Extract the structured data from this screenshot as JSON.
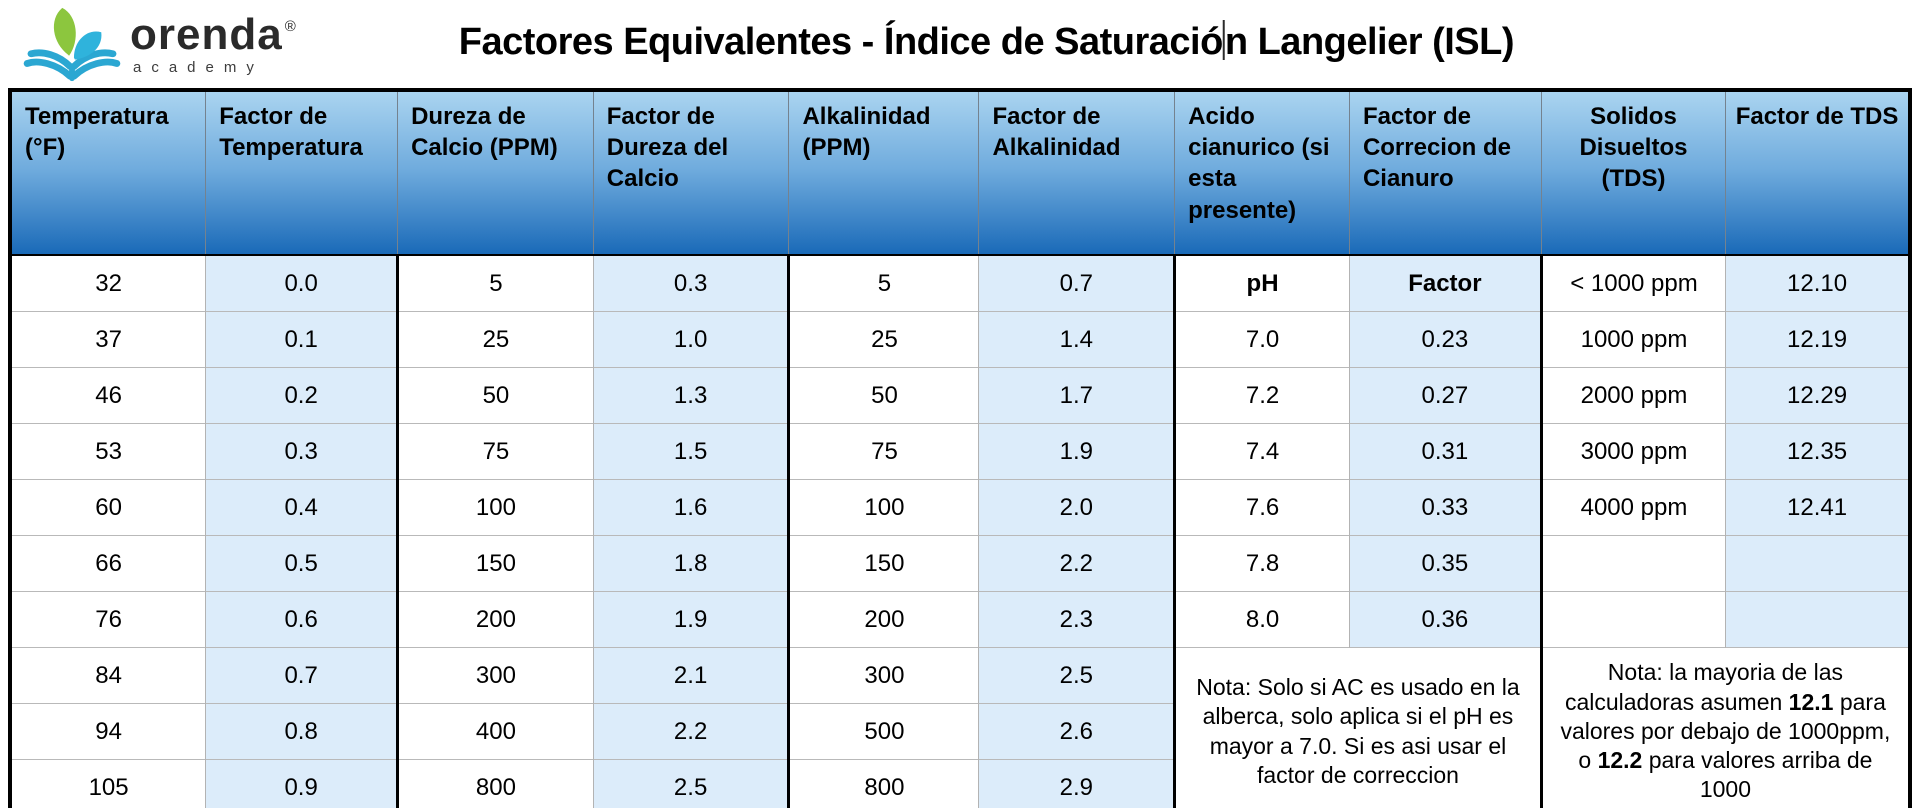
{
  "logo": {
    "brand": "orenda",
    "reg": "®",
    "sub": "academy"
  },
  "title": {
    "before_caret": "Factores Equivalentes - Índice de Saturació",
    "after_caret": "n Langelier (ISL)"
  },
  "colors": {
    "header_gradient_top": "#aad4f0",
    "header_gradient_bottom": "#1a6ab8",
    "factor_column_fill": "#dcecfa",
    "logo_leaf_green": "#8cc63e",
    "logo_book_teal": "#2ba7d2"
  },
  "table": {
    "headers": [
      "Temperatura (°F)",
      "Factor de Temperatura",
      "Dureza de Calcio (PPM)",
      "Factor de Dureza del Calcio",
      "Alkalinidad (PPM)",
      "Factor de Alkalinidad",
      "Acido cianurico (si esta presente)",
      "Factor de Correcion de Cianuro",
      "Solidos Disueltos (TDS)",
      "Factor de TDS"
    ],
    "rows": [
      [
        "32",
        "0.0",
        "5",
        "0.3",
        "5",
        "0.7",
        "pH",
        "Factor",
        "< 1000 ppm",
        "12.10"
      ],
      [
        "37",
        "0.1",
        "25",
        "1.0",
        "25",
        "1.4",
        "7.0",
        "0.23",
        "1000 ppm",
        "12.19"
      ],
      [
        "46",
        "0.2",
        "50",
        "1.3",
        "50",
        "1.7",
        "7.2",
        "0.27",
        "2000 ppm",
        "12.29"
      ],
      [
        "53",
        "0.3",
        "75",
        "1.5",
        "75",
        "1.9",
        "7.4",
        "0.31",
        "3000 ppm",
        "12.35"
      ],
      [
        "60",
        "0.4",
        "100",
        "1.6",
        "100",
        "2.0",
        "7.6",
        "0.33",
        "4000 ppm",
        "12.41"
      ],
      [
        "66",
        "0.5",
        "150",
        "1.8",
        "150",
        "2.2",
        "7.8",
        "0.35",
        "",
        ""
      ],
      [
        "76",
        "0.6",
        "200",
        "1.9",
        "200",
        "2.3",
        "8.0",
        "0.36",
        "",
        ""
      ],
      [
        "84",
        "0.7",
        "300",
        "2.1",
        "300",
        "2.5",
        null,
        null,
        null,
        null
      ],
      [
        "94",
        "0.8",
        "400",
        "2.2",
        "500",
        "2.6",
        null,
        null,
        null,
        null
      ],
      [
        "105",
        "0.9",
        "800",
        "2.5",
        "800",
        "2.9",
        null,
        null,
        null,
        null
      ]
    ],
    "cyanuric_note": "Nota: Solo si AC es usado en la alberca, solo aplica si el pH es mayor a 7.0. Si es asi usar el factor de correccion",
    "tds_note_parts": [
      "Nota: la mayoria de las calculadoras asumen ",
      "12.1",
      " para valores por debajo de 1000ppm, o ",
      "12.2",
      " para valores arriba de 1000"
    ]
  }
}
